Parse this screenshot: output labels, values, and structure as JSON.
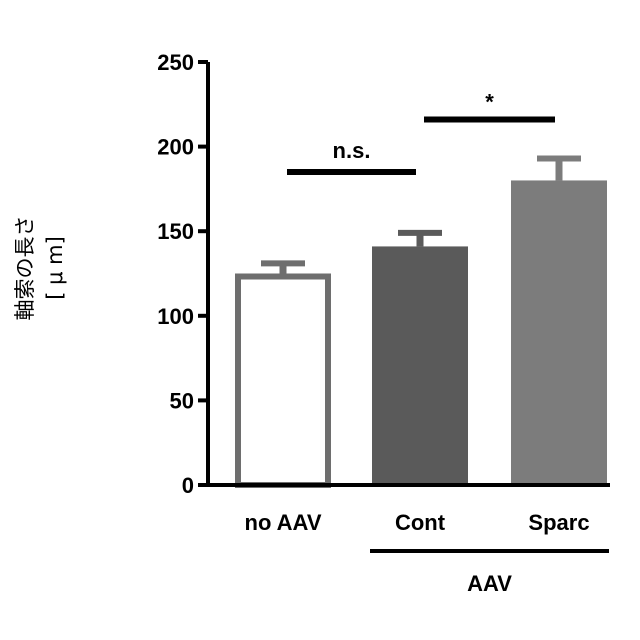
{
  "chart_data": {
    "type": "bar",
    "categories": [
      "no AAV",
      "Cont",
      "Sparc"
    ],
    "values": [
      125,
      141,
      180
    ],
    "errors": [
      6,
      8,
      13
    ],
    "colors": {
      "no AAV": {
        "fill": "#ffffff",
        "stroke": "#6e6e6e"
      },
      "Cont": {
        "fill": "#5a5a5a",
        "stroke": "#5a5a5a"
      },
      "Sparc": {
        "fill": "#7c7c7c",
        "stroke": "#7c7c7c"
      }
    },
    "ylim": [
      0,
      250
    ],
    "yticks": [
      "0",
      "50",
      "100",
      "150",
      "200",
      "250"
    ],
    "ylabel_line1": "軸索の長さ",
    "ylabel_line2": "[ μ m]",
    "group_label": "AAV",
    "group_members": [
      "Cont",
      "Sparc"
    ],
    "comparisons": [
      {
        "from": "no AAV",
        "to": "Cont",
        "label": "n.s.",
        "y": 185
      },
      {
        "from": "Cont",
        "to": "Sparc",
        "label": "*",
        "y": 216
      }
    ],
    "grid": false
  }
}
